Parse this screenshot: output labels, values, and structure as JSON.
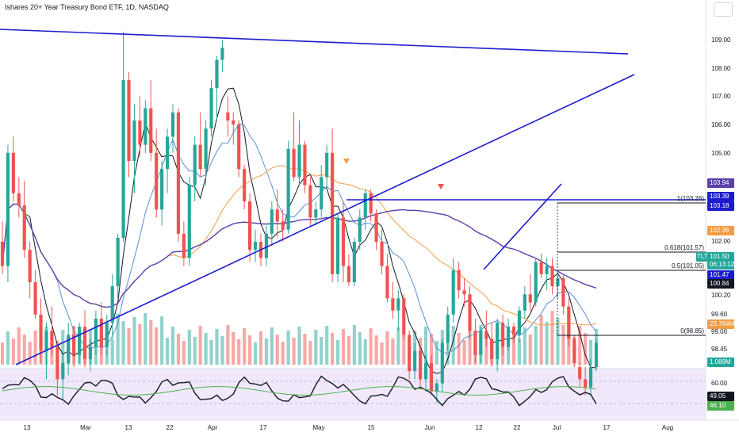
{
  "header": {
    "title": "Ishares 20+ Year Treasury Bond ETF, 1D, NASDAQ"
  },
  "colors": {
    "up": "#26a69a",
    "down": "#ef5350",
    "trend": "#1c1ccf",
    "rsi_bg": "#f1e9fb",
    "purple": "#5b3fa8",
    "orange": "#f39c43",
    "blue_ma": "#5b8fd6"
  },
  "price_axis": {
    "labels": [
      "109.00",
      "108.00",
      "107.00",
      "106.00",
      "105.00",
      "102.00",
      "100.20",
      "99.60",
      "99.00",
      "98.45"
    ],
    "badges": [
      {
        "text": "103.94",
        "color": "#5b3fa8"
      },
      {
        "text": "103.39",
        "color": "#1c1ccf"
      },
      {
        "text": "103.18",
        "color": "#1c1ccf"
      },
      {
        "text": "102.36",
        "color": "#f39c43"
      },
      {
        "text": "TLT",
        "color": "#26a69a"
      },
      {
        "text": "101.50",
        "color": "#26a69a"
      },
      {
        "text": "06:13:12",
        "color": "#26a69a"
      },
      {
        "text": "101.47",
        "color": "#1c1ccf"
      },
      {
        "text": "100.84",
        "color": "#131722"
      },
      {
        "text": "23.784M",
        "color": "#f39c43"
      },
      {
        "text": "1.089M",
        "color": "#26a69a"
      }
    ]
  },
  "rsi_axis": {
    "labels": [
      "60.00",
      "40.00"
    ],
    "badges": [
      {
        "text": "49.05",
        "color": "#131722"
      },
      {
        "text": "46.10",
        "color": "#4caf50"
      }
    ]
  },
  "fib": {
    "top": "1(103.26)",
    "f618": "0.618(101.57)",
    "f5": "0.5(101.05)",
    "zero": "0(98.85)"
  },
  "time_axis": {
    "labels": [
      "13",
      "Mar",
      "13",
      "22",
      "Apr",
      "17",
      "May",
      "15",
      "Jun",
      "12",
      "22",
      "Jul",
      "17",
      "Aug"
    ]
  },
  "chart_data": {
    "type": "candlestick",
    "instrument": "TLT",
    "timeframe": "1D",
    "close_last": 101.5,
    "markers": [
      "orange-down-triangle",
      "red-down-triangle"
    ]
  }
}
